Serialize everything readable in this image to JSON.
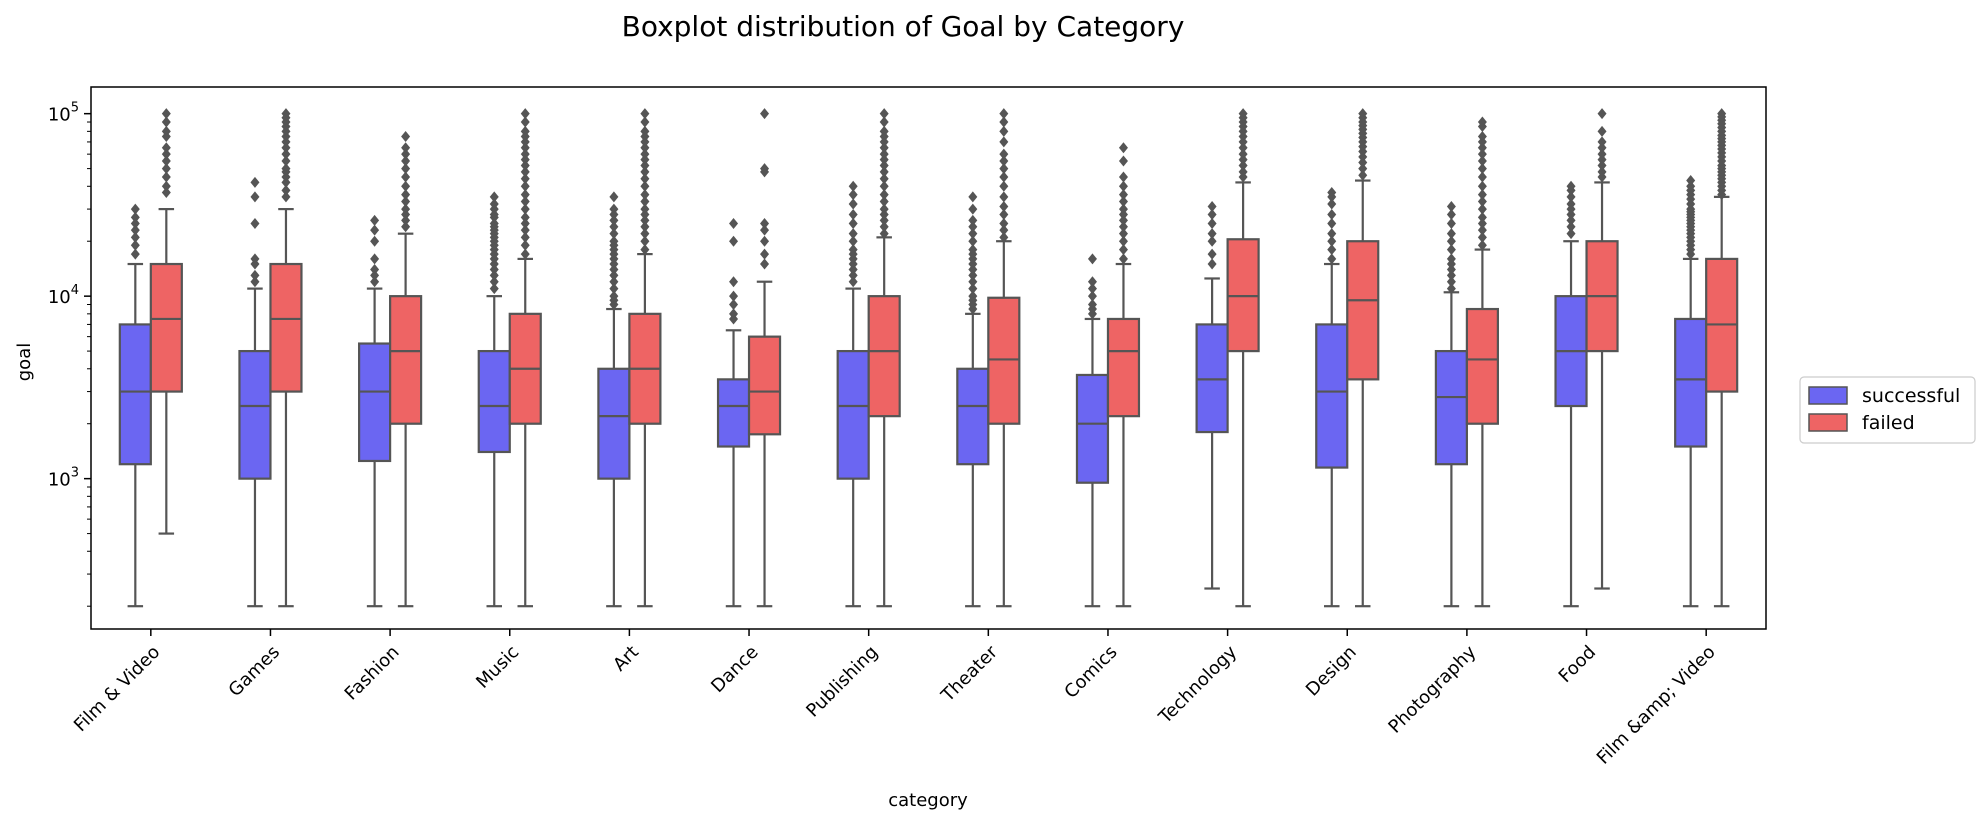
{
  "chart_data": {
    "type": "boxplot",
    "title": "Boxplot distribution of Goal by Category",
    "xlabel": "category",
    "ylabel": "goal",
    "yscale": "log",
    "ylim": [
      150,
      140000
    ],
    "yticks": [
      {
        "value": 1000,
        "base": "10",
        "exp": "3"
      },
      {
        "value": 10000,
        "base": "10",
        "exp": "4"
      },
      {
        "value": 100000,
        "base": "10",
        "exp": "5"
      }
    ],
    "legend_position": "right",
    "categories": [
      "Film & Video",
      "Games",
      "Fashion",
      "Music",
      "Art",
      "Dance",
      "Publishing",
      "Theater",
      "Comics",
      "Technology",
      "Design",
      "Photography",
      "Food",
      "Film &amp; Video"
    ],
    "series": [
      {
        "name": "successful",
        "color": "#6b66f2",
        "boxes": [
          {
            "whislo": 200,
            "q1": 1200,
            "med": 3000,
            "q3": 7000,
            "whishi": 15000,
            "fliers": [
              17000,
              19000,
              21000,
              23000,
              25000,
              27000,
              30000
            ]
          },
          {
            "whislo": 200,
            "q1": 1000,
            "med": 2500,
            "q3": 5000,
            "whishi": 11000,
            "fliers": [
              12000,
              13000,
              15000,
              16000,
              25000,
              35000,
              42000
            ]
          },
          {
            "whislo": 200,
            "q1": 1250,
            "med": 3000,
            "q3": 5500,
            "whishi": 11000,
            "fliers": [
              12000,
              13000,
              14000,
              16000,
              20000,
              23000,
              26000
            ]
          },
          {
            "whislo": 200,
            "q1": 1400,
            "med": 2500,
            "q3": 5000,
            "whishi": 10000,
            "fliers": [
              11000,
              12000,
              13000,
              14000,
              15000,
              16000,
              17000,
              18000,
              19000,
              20000,
              21000,
              22000,
              23000,
              24000,
              25000,
              27000,
              28000,
              30000,
              32000,
              35000
            ]
          },
          {
            "whislo": 200,
            "q1": 1000,
            "med": 2200,
            "q3": 4000,
            "whishi": 8500,
            "fliers": [
              9000,
              9500,
              10000,
              11000,
              12000,
              13000,
              14000,
              15000,
              16000,
              17000,
              18000,
              19000,
              20000,
              22000,
              24000,
              26000,
              28000,
              30000,
              35000
            ]
          },
          {
            "whislo": 200,
            "q1": 1500,
            "med": 2500,
            "q3": 3500,
            "whishi": 6500,
            "fliers": [
              7500,
              8000,
              9000,
              10000,
              12000,
              20000,
              25000
            ]
          },
          {
            "whislo": 200,
            "q1": 1000,
            "med": 2500,
            "q3": 5000,
            "whishi": 11000,
            "fliers": [
              12000,
              13000,
              14000,
              15000,
              16000,
              17000,
              18000,
              20000,
              22000,
              25000,
              28000,
              32000,
              36000,
              40000
            ]
          },
          {
            "whislo": 200,
            "q1": 1200,
            "med": 2500,
            "q3": 4000,
            "whishi": 8000,
            "fliers": [
              8500,
              9000,
              9500,
              10000,
              11000,
              12000,
              13000,
              14000,
              15000,
              16000,
              17000,
              18000,
              20000,
              22000,
              24000,
              26000,
              30000,
              35000
            ]
          },
          {
            "whislo": 200,
            "q1": 950,
            "med": 2000,
            "q3": 3700,
            "whishi": 7500,
            "fliers": [
              8000,
              8500,
              9000,
              10000,
              11000,
              12000,
              16000
            ]
          },
          {
            "whislo": 250,
            "q1": 1800,
            "med": 3500,
            "q3": 7000,
            "whishi": 12500,
            "fliers": [
              15000,
              17000,
              20000,
              22000,
              25000,
              28000,
              31000
            ]
          },
          {
            "whislo": 200,
            "q1": 1150,
            "med": 3000,
            "q3": 7000,
            "whishi": 15000,
            "fliers": [
              16000,
              18000,
              20000,
              22000,
              25000,
              28000,
              32000,
              35000,
              37000
            ]
          },
          {
            "whislo": 200,
            "q1": 1200,
            "med": 2800,
            "q3": 5000,
            "whishi": 10500,
            "fliers": [
              11000,
              12000,
              13000,
              14000,
              15000,
              16000,
              18000,
              20000,
              22000,
              25000,
              28000,
              31000
            ]
          },
          {
            "whislo": 200,
            "q1": 2500,
            "med": 5000,
            "q3": 10000,
            "whishi": 20000,
            "fliers": [
              22000,
              24000,
              26000,
              28000,
              30000,
              32000,
              35000,
              38000,
              40000
            ]
          },
          {
            "whislo": 200,
            "q1": 1500,
            "med": 3500,
            "q3": 7500,
            "whishi": 16000,
            "fliers": [
              17000,
              18000,
              19000,
              20000,
              21000,
              22000,
              23000,
              24000,
              25000,
              26000,
              27000,
              28000,
              29000,
              30000,
              32000,
              34000,
              36000,
              38000,
              40000,
              43000
            ]
          }
        ]
      },
      {
        "name": "failed",
        "color": "#ee6464",
        "boxes": [
          {
            "whislo": 500,
            "q1": 3000,
            "med": 7500,
            "q3": 15000,
            "whishi": 30000,
            "fliers": [
              37000,
              40000,
              45000,
              50000,
              55000,
              60000,
              65000,
              75000,
              80000,
              90000,
              100000
            ]
          },
          {
            "whislo": 200,
            "q1": 3000,
            "med": 7500,
            "q3": 15000,
            "whishi": 30000,
            "fliers": [
              35000,
              38000,
              42000,
              45000,
              48000,
              50000,
              55000,
              60000,
              65000,
              70000,
              75000,
              80000,
              85000,
              90000,
              95000,
              100000
            ]
          },
          {
            "whislo": 200,
            "q1": 2000,
            "med": 5000,
            "q3": 10000,
            "whishi": 22000,
            "fliers": [
              24000,
              26000,
              28000,
              30000,
              33000,
              36000,
              40000,
              45000,
              50000,
              55000,
              60000,
              65000,
              75000
            ]
          },
          {
            "whislo": 200,
            "q1": 2000,
            "med": 4000,
            "q3": 8000,
            "whishi": 16000,
            "fliers": [
              17000,
              19000,
              21000,
              23000,
              25000,
              27000,
              30000,
              33000,
              36000,
              40000,
              44000,
              48000,
              52000,
              56000,
              60000,
              65000,
              70000,
              75000,
              80000,
              90000,
              100000
            ]
          },
          {
            "whislo": 200,
            "q1": 2000,
            "med": 4000,
            "q3": 8000,
            "whishi": 17000,
            "fliers": [
              18000,
              20000,
              22000,
              24000,
              26000,
              28000,
              30000,
              33000,
              36000,
              40000,
              44000,
              48000,
              52000,
              56000,
              60000,
              65000,
              70000,
              75000,
              80000,
              90000,
              100000
            ]
          },
          {
            "whislo": 200,
            "q1": 1750,
            "med": 3000,
            "q3": 6000,
            "whishi": 12000,
            "fliers": [
              15000,
              17000,
              20000,
              23000,
              25000,
              48000,
              50000,
              100000
            ]
          },
          {
            "whislo": 200,
            "q1": 2200,
            "med": 5000,
            "q3": 10000,
            "whishi": 21000,
            "fliers": [
              22000,
              24000,
              26000,
              28000,
              30000,
              33000,
              36000,
              40000,
              44000,
              48000,
              52000,
              56000,
              60000,
              65000,
              70000,
              75000,
              80000,
              90000,
              100000
            ]
          },
          {
            "whislo": 200,
            "q1": 2000,
            "med": 4500,
            "q3": 9800,
            "whishi": 20000,
            "fliers": [
              21000,
              23000,
              25000,
              28000,
              31000,
              35000,
              40000,
              45000,
              50000,
              55000,
              60000,
              70000,
              80000,
              90000,
              100000
            ]
          },
          {
            "whislo": 200,
            "q1": 2200,
            "med": 5000,
            "q3": 7500,
            "whishi": 15000,
            "fliers": [
              16000,
              18000,
              20000,
              22000,
              24000,
              26000,
              28000,
              30000,
              33000,
              36000,
              40000,
              45000,
              55000,
              65000
            ]
          },
          {
            "whislo": 200,
            "q1": 5000,
            "med": 10000,
            "q3": 20500,
            "whishi": 42000,
            "fliers": [
              45000,
              48000,
              52000,
              56000,
              60000,
              65000,
              70000,
              75000,
              80000,
              85000,
              90000,
              95000,
              100000
            ]
          },
          {
            "whislo": 200,
            "q1": 3500,
            "med": 9500,
            "q3": 20000,
            "whishi": 43000,
            "fliers": [
              46000,
              50000,
              54000,
              58000,
              62000,
              66000,
              70000,
              74000,
              78000,
              82000,
              86000,
              90000,
              95000,
              100000
            ]
          },
          {
            "whislo": 200,
            "q1": 2000,
            "med": 4500,
            "q3": 8500,
            "whishi": 18000,
            "fliers": [
              19000,
              21000,
              23000,
              25000,
              27000,
              30000,
              33000,
              36000,
              40000,
              45000,
              50000,
              55000,
              60000,
              65000,
              70000,
              75000,
              85000,
              90000
            ]
          },
          {
            "whislo": 250,
            "q1": 5000,
            "med": 10000,
            "q3": 20000,
            "whishi": 42000,
            "fliers": [
              45000,
              48000,
              52000,
              56000,
              60000,
              65000,
              70000,
              80000,
              100000
            ]
          },
          {
            "whislo": 200,
            "q1": 3000,
            "med": 7000,
            "q3": 16000,
            "whishi": 35000,
            "fliers": [
              36000,
              38000,
              40000,
              42000,
              44000,
              46000,
              48000,
              50000,
              52000,
              55000,
              58000,
              61000,
              64000,
              67000,
              70000,
              73000,
              76000,
              80000,
              84000,
              88000,
              92000,
              96000,
              100000
            ]
          }
        ]
      }
    ]
  }
}
